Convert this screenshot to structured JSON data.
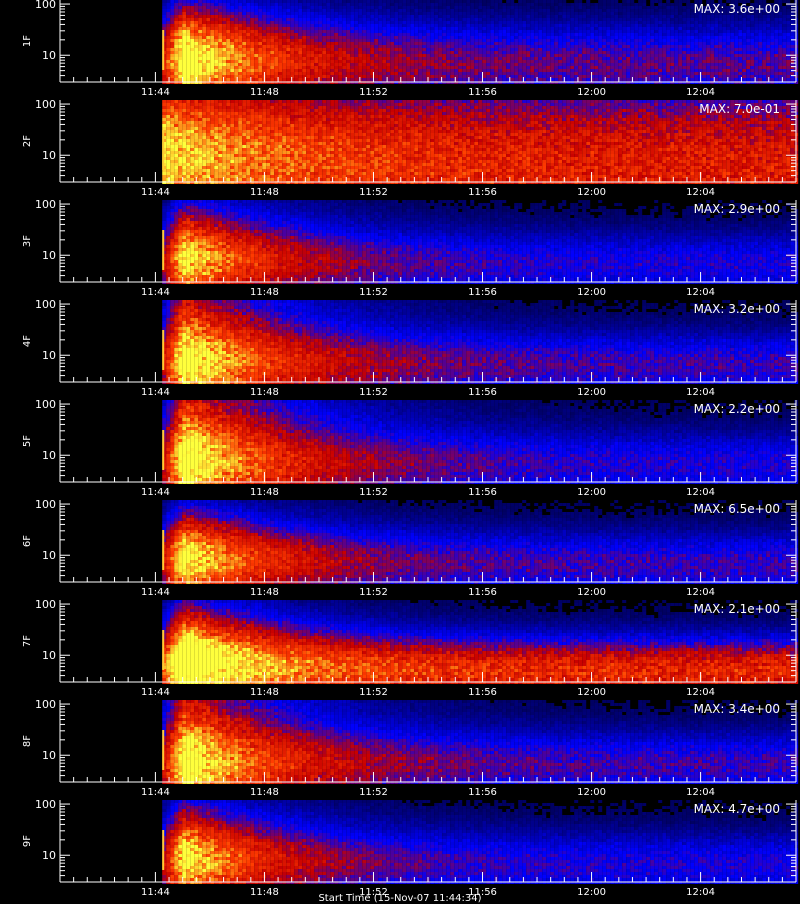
{
  "chart_data": [
    {
      "type": "heatmap",
      "ylabel": "1F",
      "annotation": "MAX: 3.6e+00",
      "yticks": [
        "10",
        "100"
      ],
      "xticks": [
        "11:44",
        "11:48",
        "11:52",
        "11:56",
        "12:00",
        "12:04"
      ],
      "bands": [
        {
          "y": 10,
          "peak_time": "11:45",
          "intensity": 1.0,
          "decay": 0.9,
          "width": 0.08
        },
        {
          "y": 6.5,
          "intensity": 0.45,
          "decay": 0.05,
          "width": 0.06
        }
      ]
    },
    {
      "type": "heatmap",
      "ylabel": "2F",
      "annotation": "MAX: 7.0e-01",
      "yticks": [
        "10",
        "100"
      ],
      "xticks": [
        "11:44",
        "11:48",
        "11:52",
        "11:56",
        "12:00",
        "12:04"
      ],
      "bands": [
        {
          "y": 18,
          "peak_time": "11:44",
          "intensity": 0.55,
          "decay": 0.6,
          "width": 0.1
        },
        {
          "y": 5,
          "intensity": 0.7,
          "decay": 0.0,
          "width": 0.14
        }
      ]
    },
    {
      "type": "heatmap",
      "ylabel": "3F",
      "annotation": "MAX: 2.9e+00",
      "yticks": [
        "10",
        "100"
      ],
      "xticks": [
        "11:44",
        "11:48",
        "11:52",
        "11:56",
        "12:00",
        "12:04"
      ],
      "bands": [
        {
          "y": 10,
          "peak_time": "11:45",
          "intensity": 0.9,
          "decay": 0.85,
          "width": 0.08
        },
        {
          "y": 6.5,
          "intensity": 0.35,
          "decay": 0.05,
          "width": 0.05
        }
      ]
    },
    {
      "type": "heatmap",
      "ylabel": "4F",
      "annotation": "MAX: 3.2e+00",
      "yticks": [
        "10",
        "100"
      ],
      "xticks": [
        "11:44",
        "11:48",
        "11:52",
        "11:56",
        "12:00",
        "12:04"
      ],
      "bands": [
        {
          "y": 10,
          "peak_time": "11:45",
          "intensity": 1.0,
          "decay": 0.8,
          "width": 0.12
        },
        {
          "y": 6.5,
          "intensity": 0.4,
          "decay": 0.05,
          "width": 0.05
        }
      ]
    },
    {
      "type": "heatmap",
      "ylabel": "5F",
      "annotation": "MAX: 2.2e+00",
      "yticks": [
        "10",
        "100"
      ],
      "xticks": [
        "11:44",
        "11:48",
        "11:52",
        "11:56",
        "12:00",
        "12:04"
      ],
      "bands": [
        {
          "y": 10,
          "peak_time": "11:45",
          "intensity": 1.05,
          "decay": 0.75,
          "width": 0.13
        },
        {
          "y": 6.5,
          "intensity": 0.35,
          "decay": 0.05,
          "width": 0.05
        }
      ]
    },
    {
      "type": "heatmap",
      "ylabel": "6F",
      "annotation": "MAX: 6.5e+00",
      "yticks": [
        "10",
        "100"
      ],
      "xticks": [
        "11:44",
        "11:48",
        "11:52",
        "11:56",
        "12:00",
        "12:04"
      ],
      "bands": [
        {
          "y": 10,
          "peak_time": "11:45",
          "intensity": 0.95,
          "decay": 0.9,
          "width": 0.07
        },
        {
          "y": 6.5,
          "intensity": 0.4,
          "decay": 0.05,
          "width": 0.05
        }
      ]
    },
    {
      "type": "heatmap",
      "ylabel": "7F",
      "annotation": "MAX: 2.1e+00",
      "yticks": [
        "10",
        "100"
      ],
      "xticks": [
        "11:44",
        "11:48",
        "11:52",
        "11:56",
        "12:00",
        "12:04"
      ],
      "bands": [
        {
          "y": 14,
          "peak_time": "11:45",
          "intensity": 1.0,
          "decay": 0.9,
          "width": 0.07
        },
        {
          "y": 4.8,
          "intensity": 0.75,
          "decay": 0.0,
          "width": 0.05
        }
      ]
    },
    {
      "type": "heatmap",
      "ylabel": "8F",
      "annotation": "MAX: 3.4e+00",
      "yticks": [
        "10",
        "100"
      ],
      "xticks": [
        "11:44",
        "11:48",
        "11:52",
        "11:56",
        "12:00",
        "12:04"
      ],
      "bands": [
        {
          "y": 9.5,
          "peak_time": "11:45",
          "intensity": 1.0,
          "decay": 0.8,
          "width": 0.13
        },
        {
          "y": 6.5,
          "intensity": 0.4,
          "decay": 0.05,
          "width": 0.05
        }
      ]
    },
    {
      "type": "heatmap",
      "ylabel": "9F",
      "annotation": "MAX: 4.7e+00",
      "yticks": [
        "10",
        "100"
      ],
      "xticks": [
        "11:44",
        "11:48",
        "11:52",
        "11:56",
        "12:00",
        "12:04"
      ],
      "bands": [
        {
          "y": 10,
          "peak_time": "11:45",
          "intensity": 0.95,
          "decay": 0.9,
          "width": 0.08
        },
        {
          "y": 6.5,
          "intensity": 0.35,
          "decay": 0.05,
          "width": 0.05
        }
      ]
    }
  ],
  "axis": {
    "x_start": "11:40:30",
    "x_end": "12:07:30",
    "data_start": "11:44:15",
    "y_range": [
      3,
      120
    ],
    "scale": "log"
  },
  "x_title": "Start Time (15-Nov-07 11:44:34)"
}
